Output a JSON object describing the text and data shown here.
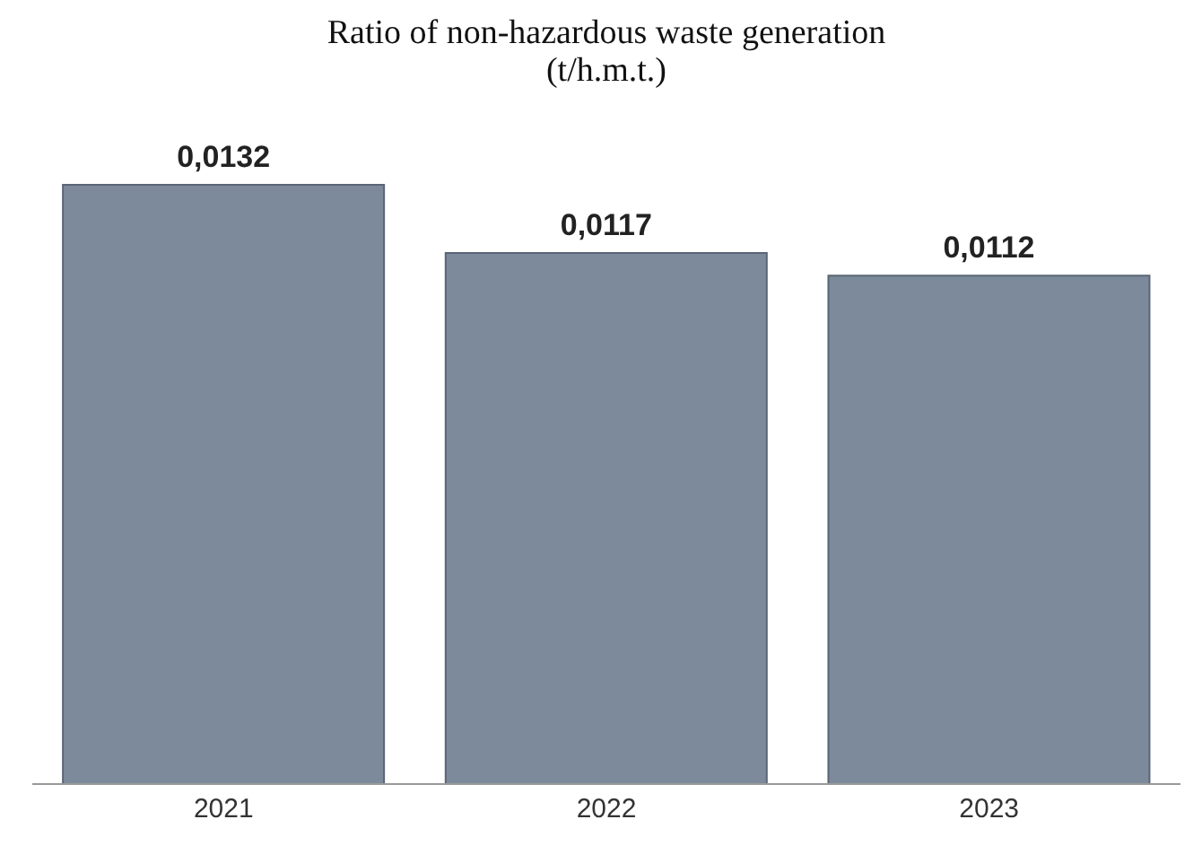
{
  "chart_data": {
    "type": "bar",
    "title": "Ratio of non-hazardous waste generation (t/h.m.t.)",
    "categories": [
      "2021",
      "2022",
      "2023"
    ],
    "values": [
      0.0132,
      0.0117,
      0.0112
    ],
    "color": "#7d8a9c",
    "data_labels": true,
    "value_labels": [
      "0,0132",
      "0,0117",
      "0,0112"
    ]
  }
}
